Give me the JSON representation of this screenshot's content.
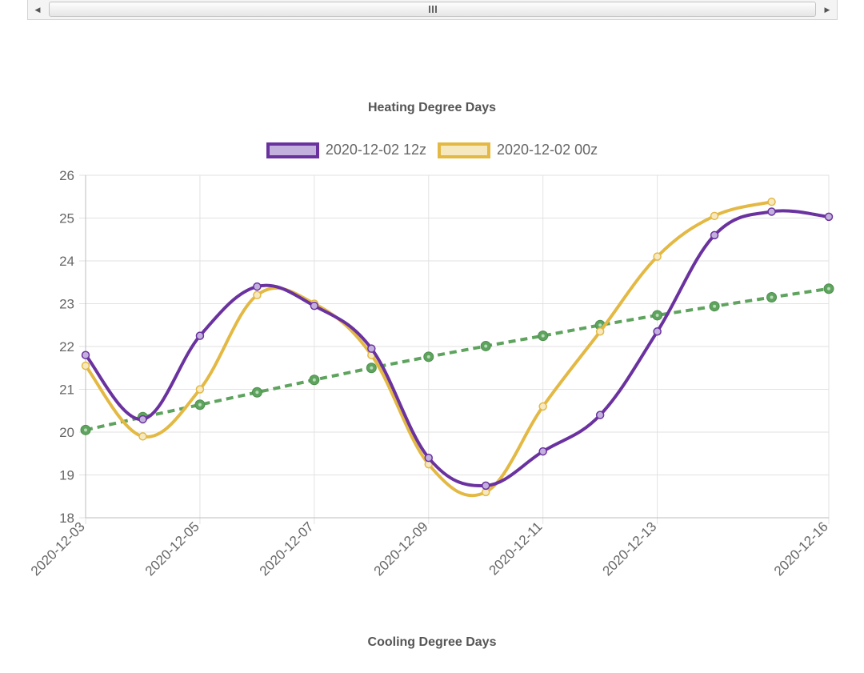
{
  "scrollbar": {
    "left_icon": "arrow-left-icon",
    "right_icon": "arrow-right-icon",
    "thumb_icon": "grip-icon"
  },
  "chart_title": "Heating Degree Days",
  "sub_title": "Cooling Degree Days",
  "chart_data": {
    "type": "line",
    "title": "Heating Degree Days",
    "xlabel": "",
    "ylabel": "",
    "ylim": [
      18,
      26
    ],
    "yticks": [
      18,
      19,
      20,
      21,
      22,
      23,
      24,
      25,
      26
    ],
    "x": [
      "2020-12-03",
      "2020-12-04",
      "2020-12-05",
      "2020-12-06",
      "2020-12-07",
      "2020-12-08",
      "2020-12-09",
      "2020-12-10",
      "2020-12-11",
      "2020-12-12",
      "2020-12-13",
      "2020-12-14",
      "2020-12-15",
      "2020-12-16"
    ],
    "xtick_labels": [
      "2020-12-03",
      "2020-12-05",
      "2020-12-07",
      "2020-12-09",
      "2020-12-11",
      "2020-12-13",
      "2020-12-16"
    ],
    "grid": true,
    "legend_position": "top",
    "series": [
      {
        "name": "2020-12-02 12z",
        "color": "#6a329f",
        "fill": "#c3b0dd",
        "values": [
          21.8,
          20.3,
          22.25,
          23.4,
          22.95,
          21.95,
          19.4,
          18.75,
          19.55,
          20.4,
          22.35,
          24.6,
          25.15,
          25.03
        ]
      },
      {
        "name": "2020-12-02 00z",
        "color": "#e3b944",
        "fill": "#f6e9c0",
        "values": [
          21.55,
          19.9,
          21.0,
          23.2,
          23.0,
          21.8,
          19.25,
          18.6,
          20.6,
          22.35,
          24.1,
          25.05,
          25.38,
          null
        ]
      },
      {
        "name": "",
        "color": "#5ea35e",
        "style": "dashed",
        "values": [
          20.05,
          20.35,
          20.64,
          20.93,
          21.22,
          21.5,
          21.76,
          22.01,
          22.25,
          22.5,
          22.73,
          22.94,
          23.15,
          23.35
        ]
      }
    ]
  }
}
